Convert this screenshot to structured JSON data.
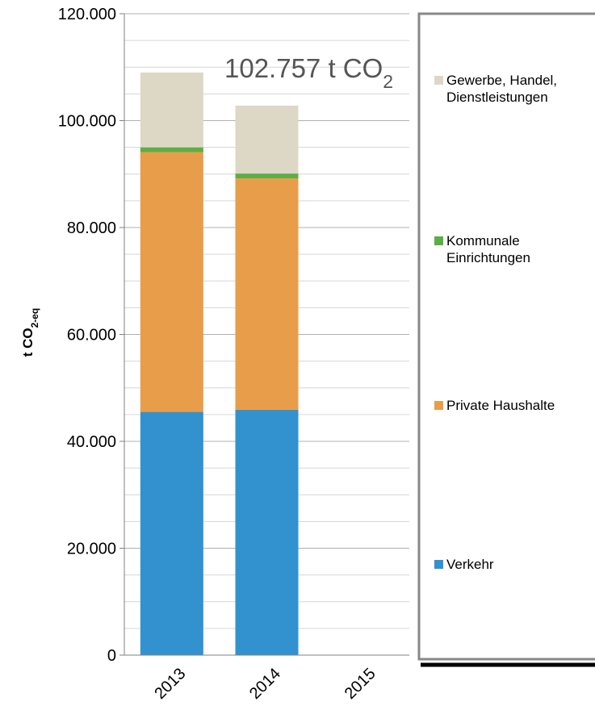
{
  "chart_data": {
    "type": "bar",
    "stacked": true,
    "categories": [
      "2013",
      "2014",
      "2015"
    ],
    "series": [
      {
        "name": "Verkehr",
        "values": [
          45500,
          45900,
          null
        ],
        "color": "#3192CF"
      },
      {
        "name": "Private Haushalte",
        "values": [
          48600,
          43300,
          null
        ],
        "color": "#E89D4A"
      },
      {
        "name": "Kommunale Einrichtungen",
        "values": [
          900,
          900,
          null
        ],
        "color": "#5DAE45"
      },
      {
        "name": "Gewerbe, Handel, Dienstleistungen",
        "values": [
          14000,
          12700,
          null
        ],
        "color": "#DDD8C6"
      }
    ],
    "ylabel_main": "t CO",
    "ylabel_sub": "2-eq",
    "ylim": [
      0,
      120000
    ],
    "ytick_labels": [
      "0",
      "20.000",
      "40.000",
      "60.000",
      "80.000",
      "100.000",
      "120.000"
    ],
    "grid": true,
    "legend_position": "right",
    "annotation_main": "102.757 t CO",
    "annotation_sub": "2"
  }
}
